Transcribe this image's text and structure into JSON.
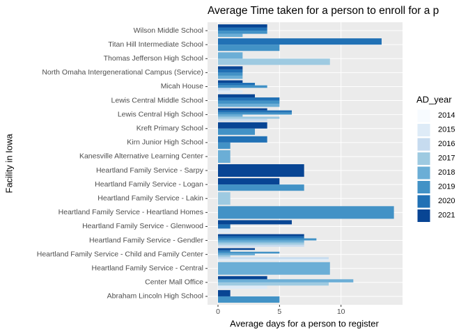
{
  "chart_data": {
    "type": "bar",
    "orientation": "horizontal",
    "title": "Average Time taken for a person to enroll for a p",
    "x_label": "Average days for a person to register",
    "y_label": "Facility in Iowa",
    "legend_title": "AD_year",
    "categories": [
      "Abraham Lincoln High School",
      "Center Mall Office",
      "Heartland Family Service - Central",
      "Heartland Family Service - Child and Family Center",
      "Heartland Family Service - Gendler",
      "Heartland Family Service - Glenwood",
      "Heartland Family Service - Heartland Homes",
      "Heartland Family Service - Lakin",
      "Heartland Family Service - Logan",
      "Heartland Family Service - Sarpy",
      "Kanesville Alternative Learning Center",
      "Kirn Junior High  School",
      "Kreft Primary School",
      "Lewis Central High School",
      "Lewis Central Middle School",
      "Micah House",
      "North Omaha Intergenerational Campus (Service)",
      "Thomas Jefferson High School",
      "Titan Hill Intermediate School",
      "Wilson Middle School"
    ],
    "series": [
      {
        "name": "2014",
        "color": "#F7FBFF",
        "values": [
          null,
          null,
          null,
          null,
          null,
          null,
          null,
          null,
          null,
          null,
          null,
          null,
          null,
          null,
          null,
          null,
          null,
          null,
          null,
          null
        ]
      },
      {
        "name": "2015",
        "color": "#DEEBF7",
        "values": [
          null,
          4,
          null,
          9,
          null,
          1,
          null,
          null,
          null,
          null,
          null,
          null,
          null,
          null,
          null,
          2,
          null,
          null,
          null,
          null
        ]
      },
      {
        "name": "2016",
        "color": "#C6DBEF",
        "values": [
          null,
          null,
          null,
          9,
          7,
          null,
          null,
          null,
          null,
          null,
          null,
          null,
          null,
          4,
          null,
          1,
          null,
          null,
          null,
          null
        ]
      },
      {
        "name": "2017",
        "color": "#9ECAE1",
        "values": [
          null,
          9,
          null,
          1,
          7,
          null,
          null,
          1,
          null,
          null,
          null,
          null,
          null,
          5,
          null,
          null,
          null,
          9.1,
          null,
          null
        ]
      },
      {
        "name": "2018",
        "color": "#6BAED6",
        "values": [
          null,
          11,
          9.1,
          3,
          7,
          null,
          null,
          null,
          null,
          null,
          1,
          null,
          null,
          2,
          5,
          null,
          2,
          2,
          null,
          2
        ]
      },
      {
        "name": "2019",
        "color": "#4292C6",
        "values": [
          5,
          null,
          null,
          5,
          8,
          null,
          14.3,
          null,
          7,
          null,
          null,
          1,
          3,
          6,
          5,
          4,
          2,
          null,
          5,
          4
        ]
      },
      {
        "name": "2020",
        "color": "#2171B5",
        "values": [
          null,
          null,
          null,
          1,
          7,
          1,
          null,
          null,
          null,
          null,
          null,
          4,
          null,
          6,
          5,
          3,
          2,
          null,
          13.3,
          4
        ]
      },
      {
        "name": "2021",
        "color": "#084594",
        "values": [
          1,
          4,
          null,
          3,
          7,
          6,
          null,
          null,
          5,
          7,
          null,
          null,
          4,
          4,
          3,
          2,
          2,
          null,
          null,
          4
        ]
      }
    ],
    "xlim": [
      -0.85,
      15
    ],
    "xticks": [
      0,
      5,
      10
    ],
    "grid": true,
    "legend_position": "right"
  }
}
